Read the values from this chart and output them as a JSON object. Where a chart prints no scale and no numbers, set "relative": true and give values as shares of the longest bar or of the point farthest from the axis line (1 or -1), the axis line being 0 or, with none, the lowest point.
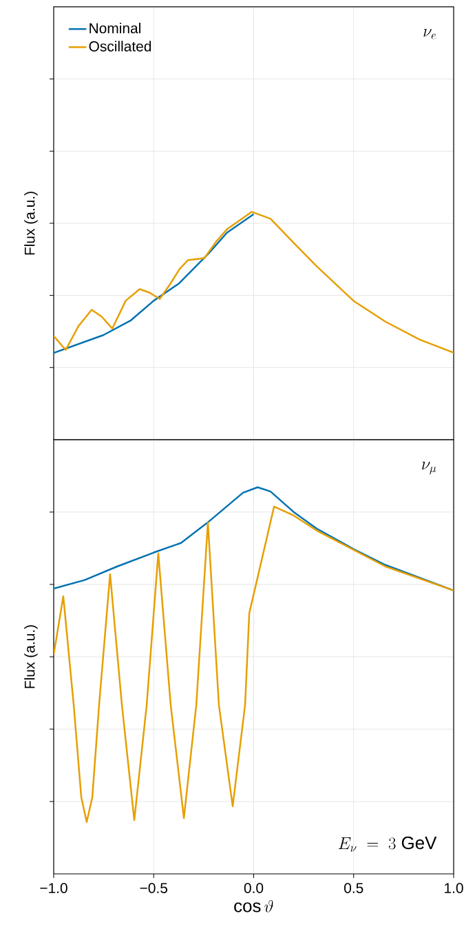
{
  "chart_data": [
    {
      "type": "line",
      "relative": true,
      "ylabel": "Flux (a.u.)",
      "xlim": [
        -1,
        1
      ],
      "xticks": [
        -1.0,
        -0.5,
        0.0,
        0.5,
        1.0
      ],
      "tick_labels": false,
      "grid": true,
      "legend": "top left",
      "annotations": [
        "\\nu_{e}"
      ],
      "series": [
        {
          "name": "Nominal",
          "color": "#0072b2",
          "x": [
            -1.0,
            -0.993,
            -0.752,
            -0.614,
            -0.5,
            -0.373,
            -0.225,
            -0.133,
            0.0
          ],
          "values": [
            0.38,
            0.383,
            0.459,
            0.524,
            0.61,
            0.686,
            0.818,
            0.909,
            0.99
          ]
        },
        {
          "name": "Oscillated",
          "color": "#e69f00",
          "x": [
            -1.0,
            -0.94,
            -0.875,
            -0.81,
            -0.76,
            -0.707,
            -0.64,
            -0.57,
            -0.52,
            -0.47,
            -0.42,
            -0.37,
            -0.329,
            -0.246,
            -0.19,
            -0.133,
            -0.01,
            0.084,
            0.2,
            0.315,
            0.5,
            0.659,
            0.831,
            1.0
          ],
          "values": [
            0.455,
            0.394,
            0.5,
            0.57,
            0.54,
            0.488,
            0.61,
            0.661,
            0.645,
            0.618,
            0.68,
            0.75,
            0.788,
            0.797,
            0.867,
            0.924,
            1.0,
            0.97,
            0.864,
            0.761,
            0.609,
            0.518,
            0.439,
            0.382
          ]
        }
      ]
    },
    {
      "type": "line",
      "relative": true,
      "ylabel": "Flux (a.u.)",
      "xlabel": "\\cos\\vartheta",
      "xlim": [
        -1,
        1
      ],
      "xticks": [
        {
          "value": -1.0,
          "label": "−1.0"
        },
        {
          "value": -0.5,
          "label": "−0.5"
        },
        {
          "value": 0.0,
          "label": "0.0"
        },
        0.5,
        {
          "value": 1.0,
          "label": "1.0"
        }
      ],
      "tick_labels": "x",
      "grid": true,
      "annotations": [
        "\\nu_{\\mu}",
        "E_{\\nu}\\;=\\;3\\ \\mathrm{GeV}"
      ],
      "series": [
        {
          "color": "#0072b2",
          "x": [
            -1.0,
            -0.845,
            -0.683,
            -0.5,
            -0.363,
            -0.225,
            -0.053,
            0.02,
            0.084,
            0.2,
            0.315,
            0.5,
            0.659,
            1.0
          ],
          "values": [
            0.738,
            0.76,
            0.795,
            0.831,
            0.856,
            0.911,
            0.986,
            1.0,
            0.989,
            0.936,
            0.893,
            0.84,
            0.799,
            0.733
          ]
        },
        {
          "color": "#e69f00",
          "x": [
            -1.0,
            -0.952,
            -0.9,
            -0.862,
            -0.835,
            -0.807,
            -0.773,
            -0.718,
            -0.659,
            -0.597,
            -0.535,
            -0.477,
            -0.415,
            -0.349,
            -0.287,
            -0.229,
            -0.174,
            -0.105,
            -0.043,
            -0.022,
            0.102,
            0.2,
            0.315,
            0.5,
            0.659,
            1.0
          ],
          "values": [
            0.567,
            0.718,
            0.437,
            0.198,
            0.134,
            0.198,
            0.437,
            0.775,
            0.437,
            0.139,
            0.437,
            0.829,
            0.437,
            0.144,
            0.437,
            0.909,
            0.437,
            0.175,
            0.437,
            0.674,
            0.95,
            0.927,
            0.888,
            0.838,
            0.795,
            0.733
          ]
        }
      ]
    }
  ]
}
